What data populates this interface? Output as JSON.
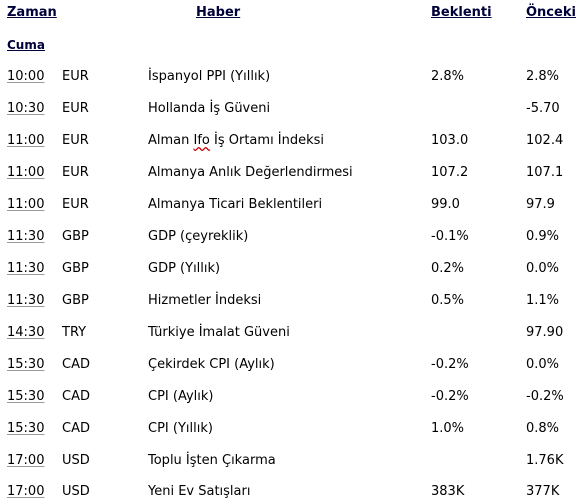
{
  "headers": {
    "time": "Zaman",
    "news": "Haber",
    "expected": "Beklenti",
    "previous": "Önceki"
  },
  "day": "Cuma",
  "rows": [
    {
      "time": "10:00",
      "currency": "EUR",
      "news": "İspanyol PPI (Yıllık)",
      "expected": "2.8%",
      "previous": "2.8%"
    },
    {
      "time": "10:30",
      "currency": "EUR",
      "news": "Hollanda İş Güveni",
      "expected": "",
      "previous": "-5.70"
    },
    {
      "time": "11:00",
      "currency": "EUR",
      "news_pre": "Alman ",
      "news_mark": "Ifo",
      "news_post": " İş Ortamı İndeksi",
      "expected": "103.0",
      "previous": "102.4"
    },
    {
      "time": "11:00",
      "currency": "EUR",
      "news": "Almanya Anlık Değerlendirmesi",
      "expected": "107.2",
      "previous": "107.1"
    },
    {
      "time": "11:00",
      "currency": "EUR",
      "news": "Almanya Ticari Beklentileri",
      "expected": "99.0",
      "previous": "97.9"
    },
    {
      "time": "11:30",
      "currency": "GBP",
      "news": "GDP (çeyreklik)",
      "expected": "-0.1%",
      "previous": "0.9%"
    },
    {
      "time": "11:30",
      "currency": "GBP",
      "news": "GDP (Yıllık)",
      "expected": "0.2%",
      "previous": "0.0%"
    },
    {
      "time": "11:30",
      "currency": "GBP",
      "news": "Hizmetler İndeksi",
      "expected": "0.5%",
      "previous": "1.1%"
    },
    {
      "time": "14:30",
      "currency": "TRY",
      "news": "Türkiye İmalat Güveni",
      "expected": "",
      "previous": "97.90"
    },
    {
      "time": "15:30",
      "currency": "CAD",
      "news": "Çekirdek CPI (Aylık)",
      "expected": "-0.2%",
      "previous": "0.0%"
    },
    {
      "time": "15:30",
      "currency": "CAD",
      "news": "CPI (Aylık)",
      "expected": "-0.2%",
      "previous": "-0.2%"
    },
    {
      "time": "15:30",
      "currency": "CAD",
      "news": "CPI (Yıllık)",
      "expected": "1.0%",
      "previous": "0.8%"
    },
    {
      "time": "17:00",
      "currency": "USD",
      "news": "Toplu İşten Çıkarma",
      "expected": "",
      "previous": "1.76K"
    },
    {
      "time": "17:00",
      "currency": "USD",
      "news": "Yeni Ev Satışları",
      "expected": "383K",
      "previous": "377K"
    }
  ]
}
